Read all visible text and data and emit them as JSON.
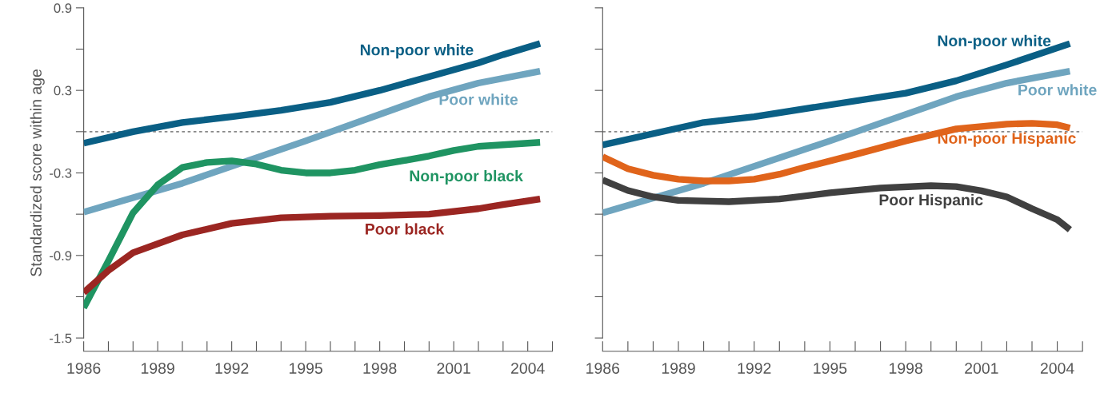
{
  "chart_data": [
    {
      "type": "line",
      "ylabel": "Standardized score within age",
      "xlim": [
        1986,
        2005
      ],
      "ylim": [
        -1.5,
        0.9
      ],
      "xticks": [
        {
          "value": 1986,
          "label": "1986"
        },
        {
          "value": 1987,
          "label": null
        },
        {
          "value": 1988,
          "label": null
        },
        {
          "value": 1989,
          "label": "1989"
        },
        {
          "value": 1990,
          "label": null
        },
        {
          "value": 1991,
          "label": null
        },
        {
          "value": 1992,
          "label": "1992"
        },
        {
          "value": 1993,
          "label": null
        },
        {
          "value": 1994,
          "label": null
        },
        {
          "value": 1995,
          "label": "1995"
        },
        {
          "value": 1996,
          "label": null
        },
        {
          "value": 1997,
          "label": null
        },
        {
          "value": 1998,
          "label": "1998"
        },
        {
          "value": 1999,
          "label": null
        },
        {
          "value": 2000,
          "label": null
        },
        {
          "value": 2001,
          "label": "2001"
        },
        {
          "value": 2002,
          "label": null
        },
        {
          "value": 2003,
          "label": null
        },
        {
          "value": 2004,
          "label": "2004"
        },
        {
          "value": 2005,
          "label": null
        }
      ],
      "yticks": [
        0.9,
        {
          "value": 0.6,
          "label": null
        },
        0.3,
        {
          "value": 0,
          "label": null
        },
        -0.3,
        {
          "value": -0.6,
          "label": null
        },
        -0.9,
        {
          "value": -1.2,
          "label": null
        },
        -1.5
      ],
      "ref_lines": [
        {
          "axis": "y",
          "value": 0,
          "color": "#888888",
          "line_style": "dotted"
        }
      ],
      "marker": "none",
      "line_style": "solid",
      "series": [
        {
          "name": "Non-poor white",
          "color": "#0a5f85",
          "x": [
            1986,
            1988,
            1990,
            1992,
            1994,
            1996,
            1998,
            2000,
            2002,
            2003,
            2004.5
          ],
          "values": [
            -0.084,
            0.0,
            0.067,
            0.108,
            0.155,
            0.213,
            0.3,
            0.4,
            0.5,
            0.56,
            0.64
          ]
        },
        {
          "name": "Poor white",
          "color": "#6fa5bf",
          "x": [
            1986,
            1990,
            1995,
            2000,
            2002,
            2004.5
          ],
          "values": [
            -0.585,
            -0.375,
            -0.067,
            0.254,
            0.353,
            0.44
          ]
        },
        {
          "name": "Non-poor black",
          "color": "#1f9462",
          "x": [
            1986,
            1987,
            1988,
            1989,
            1990,
            1991,
            1992,
            1993,
            1994,
            1995,
            1996,
            1997,
            1998,
            1999,
            2000,
            2001,
            2002,
            2004.5
          ],
          "values": [
            -1.28,
            -0.94,
            -0.59,
            -0.387,
            -0.26,
            -0.224,
            -0.212,
            -0.236,
            -0.28,
            -0.3,
            -0.3,
            -0.28,
            -0.24,
            -0.21,
            -0.177,
            -0.137,
            -0.107,
            -0.078
          ]
        },
        {
          "name": "Poor black",
          "color": "#9b2622",
          "x": [
            1986,
            1987,
            1988,
            1990,
            1992,
            1994,
            1996,
            1998,
            2000,
            2002,
            2003,
            2004.5
          ],
          "values": [
            -1.17,
            -1.01,
            -0.88,
            -0.75,
            -0.667,
            -0.626,
            -0.614,
            -0.61,
            -0.6,
            -0.56,
            -0.53,
            -0.49
          ]
        }
      ]
    },
    {
      "type": "line",
      "xlim": [
        1986,
        2005
      ],
      "ylim": [
        -1.5,
        0.9
      ],
      "tick_labels": "x",
      "yticks": [
        0.9,
        {
          "value": 0.6,
          "label": null
        },
        0.3,
        {
          "value": 0,
          "label": null
        },
        -0.3,
        {
          "value": -0.6,
          "label": null
        },
        -0.9,
        {
          "value": -1.2,
          "label": null
        },
        -1.5
      ],
      "xticks": [
        {
          "value": 1986,
          "label": "1986"
        },
        {
          "value": 1987,
          "label": null
        },
        {
          "value": 1988,
          "label": null
        },
        {
          "value": 1989,
          "label": "1989"
        },
        {
          "value": 1990,
          "label": null
        },
        {
          "value": 1991,
          "label": null
        },
        {
          "value": 1992,
          "label": "1992"
        },
        {
          "value": 1993,
          "label": null
        },
        {
          "value": 1994,
          "label": null
        },
        {
          "value": 1995,
          "label": "1995"
        },
        {
          "value": 1996,
          "label": null
        },
        {
          "value": 1997,
          "label": null
        },
        {
          "value": 1998,
          "label": "1998"
        },
        {
          "value": 1999,
          "label": null
        },
        {
          "value": 2000,
          "label": null
        },
        {
          "value": 2001,
          "label": "2001"
        },
        {
          "value": 2002,
          "label": null
        },
        {
          "value": 2003,
          "label": null
        },
        {
          "value": 2004,
          "label": "2004"
        },
        {
          "value": 2005,
          "label": null
        }
      ],
      "ref_lines": [
        {
          "axis": "y",
          "value": 0,
          "color": "#888888",
          "line_style": "dotted"
        }
      ],
      "marker": "none",
      "line_style": "solid",
      "series": [
        {
          "name": "Non-poor white",
          "color": "#0a5f85",
          "x": [
            1986,
            1990,
            1992,
            1995,
            1998,
            2000,
            2002,
            2004.5
          ],
          "values": [
            -0.096,
            0.067,
            0.108,
            0.195,
            0.28,
            0.37,
            0.486,
            0.64
          ]
        },
        {
          "name": "Poor white",
          "color": "#6fa5bf",
          "x": [
            1986,
            1990,
            1995,
            2000,
            2002,
            2004.5
          ],
          "values": [
            -0.59,
            -0.375,
            -0.067,
            0.254,
            0.353,
            0.44
          ]
        },
        {
          "name": "Non-poor Hispanic",
          "color": "#e0641b",
          "x": [
            1986,
            1987,
            1988,
            1989,
            1990,
            1991,
            1992,
            1993,
            1994,
            1996,
            1998,
            2000,
            2002,
            2003,
            2004,
            2004.5
          ],
          "values": [
            -0.183,
            -0.27,
            -0.317,
            -0.346,
            -0.358,
            -0.358,
            -0.346,
            -0.31,
            -0.26,
            -0.166,
            -0.067,
            0.02,
            0.055,
            0.061,
            0.05,
            0.026
          ]
        },
        {
          "name": "Poor Hispanic",
          "color": "#404040",
          "x": [
            1986,
            1987,
            1988,
            1989,
            1991,
            1993,
            1995,
            1997,
            1999,
            2000,
            2001,
            2002,
            2003,
            2004,
            2004.5
          ],
          "values": [
            -0.352,
            -0.428,
            -0.474,
            -0.5,
            -0.509,
            -0.49,
            -0.445,
            -0.41,
            -0.393,
            -0.4,
            -0.43,
            -0.474,
            -0.56,
            -0.64,
            -0.713
          ]
        }
      ]
    }
  ]
}
